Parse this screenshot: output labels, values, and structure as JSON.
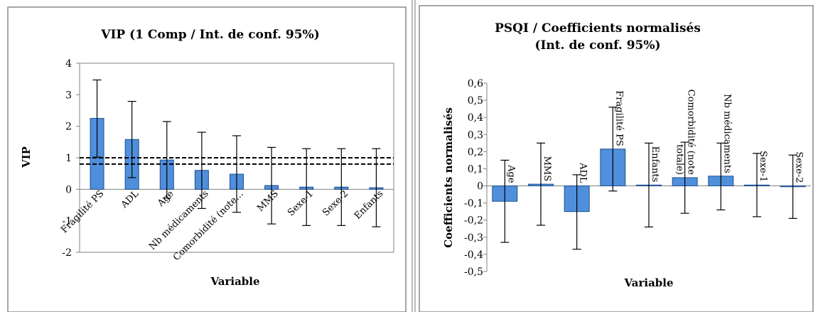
{
  "colors": {
    "bar": "#4f8fdc",
    "bar_stroke": "#1f4f8f",
    "frame": "#888888",
    "axis": "#808080",
    "error": "#000000"
  },
  "chart_data": [
    {
      "type": "bar",
      "title": "VIP (1 Comp / Int. de conf. 95%)",
      "xlabel": "Variable",
      "ylabel": "VIP",
      "ylim": [
        -2,
        4
      ],
      "yticks": [
        -2,
        -1,
        0,
        1,
        2,
        3,
        4
      ],
      "ytick_labels": [
        "-2",
        "-1",
        "0",
        "1",
        "2",
        "3",
        "4"
      ],
      "reference_lines": [
        1.0,
        0.8
      ],
      "categories": [
        "Fragilité PS",
        "ADL",
        "Age",
        "Nb médicaments",
        "Comorbidité (note…",
        "MMS",
        "Sexe-1",
        "Sexe-2",
        "Enfants"
      ],
      "values": [
        2.25,
        1.58,
        0.93,
        0.6,
        0.48,
        0.12,
        0.07,
        0.07,
        0.05
      ],
      "error_low": [
        1.02,
        0.37,
        -0.28,
        -0.61,
        -0.73,
        -1.1,
        -1.15,
        -1.15,
        -1.19
      ],
      "error_high": [
        3.47,
        2.79,
        2.15,
        1.81,
        1.7,
        1.33,
        1.29,
        1.29,
        1.29
      ]
    },
    {
      "type": "bar",
      "title": [
        "PSQI / Coefficients normalisés",
        "(Int. de conf. 95%)"
      ],
      "xlabel": "Variable",
      "ylabel": "Coefficients normalisés",
      "ylim": [
        -0.5,
        0.6
      ],
      "yticks": [
        -0.5,
        -0.4,
        -0.3,
        -0.2,
        -0.1,
        0,
        0.1,
        0.2,
        0.3,
        0.4,
        0.5,
        0.6
      ],
      "ytick_labels": [
        "-0,5",
        "-0,4",
        "-0,3",
        "-0,2",
        "-0,1",
        "0",
        "0,1",
        "0,2",
        "0,3",
        "0,4",
        "0,5",
        "0,6"
      ],
      "categories": [
        "Age",
        "MMS",
        "ADL",
        "Fragilité PS",
        "Enfants",
        [
          "Comorbidité (note",
          "totale)"
        ],
        "Nb médicaments",
        "Sexe-1",
        "Sexe-2"
      ],
      "values": [
        -0.09,
        0.01,
        -0.15,
        0.215,
        0.005,
        0.048,
        0.057,
        0.005,
        -0.005
      ],
      "error_low": [
        -0.33,
        -0.23,
        -0.37,
        -0.03,
        -0.24,
        -0.16,
        -0.14,
        -0.18,
        -0.19
      ],
      "error_high": [
        0.15,
        0.25,
        0.065,
        0.46,
        0.25,
        0.255,
        0.25,
        0.19,
        0.18
      ]
    }
  ]
}
